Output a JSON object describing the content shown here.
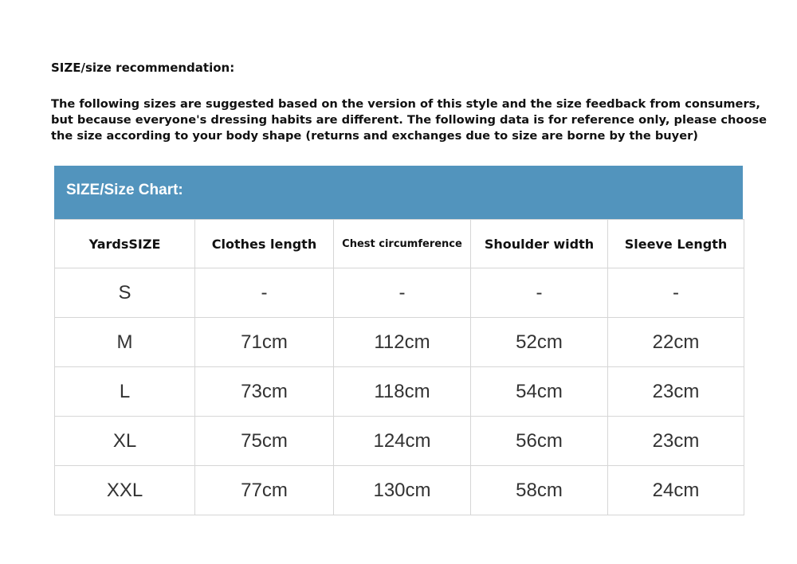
{
  "heading": "SIZE/size recommendation:",
  "description": "The following sizes are suggested based on the version of this style and the size feedback from consumers, but because everyone's dressing habits are different. The following data is for reference only, please choose the size according to your body shape (returns and exchanges due to size are borne by the buyer)",
  "table": {
    "title": "SIZE/Size Chart:",
    "header_color": "#5294bd",
    "columns": [
      "YardsSIZE",
      "Clothes length",
      "Chest circumference",
      "Shoulder width",
      "Sleeve Length"
    ],
    "rows": [
      [
        "S",
        "-",
        "-",
        "-",
        "-"
      ],
      [
        "M",
        "71cm",
        "112cm",
        "52cm",
        "22cm"
      ],
      [
        "L",
        "73cm",
        "118cm",
        "54cm",
        "23cm"
      ],
      [
        "XL",
        "75cm",
        "124cm",
        "56cm",
        "23cm"
      ],
      [
        "XXL",
        "77cm",
        "130cm",
        "58cm",
        "24cm"
      ]
    ]
  }
}
